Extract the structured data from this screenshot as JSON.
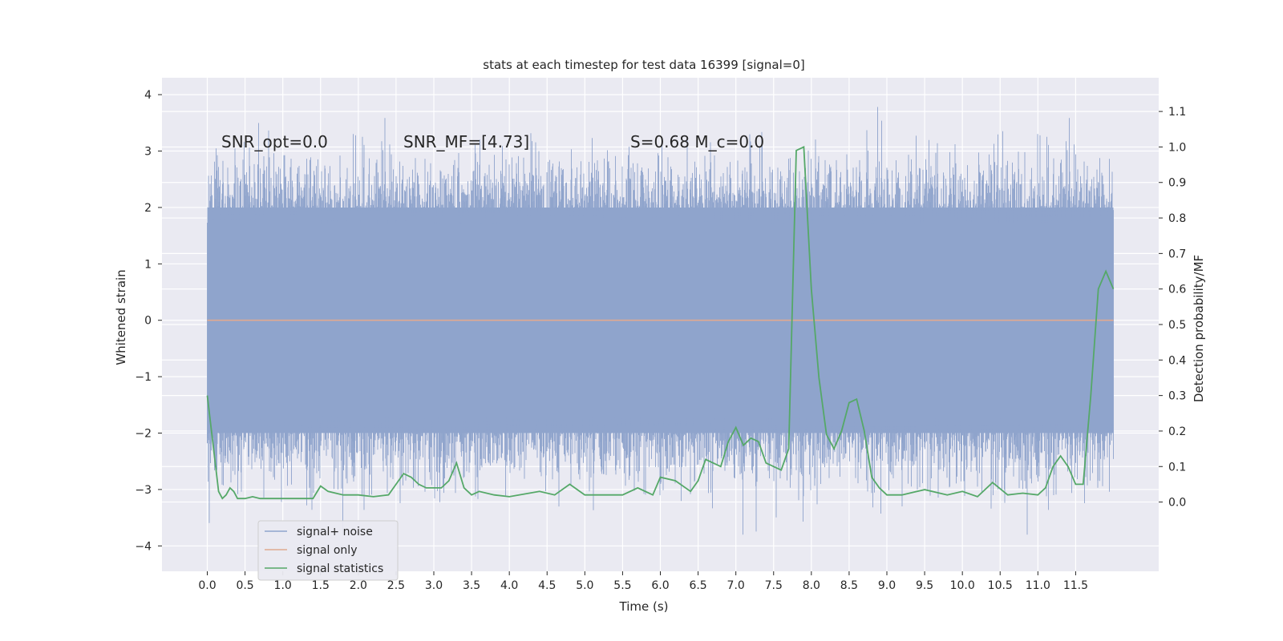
{
  "chart_data": {
    "type": "line",
    "title": "stats at each timestep for test data 16399 [signal=0]",
    "xlabel": "Time (s)",
    "ylabel_left": "Whitened strain",
    "ylabel_right": "Detection probability/MF",
    "xlim": [
      -0.6,
      12.6
    ],
    "ylim_left": [
      -4.45,
      4.3
    ],
    "ylim_right": [
      -0.195,
      1.195
    ],
    "x_ticks": [
      "0.0",
      "0.5",
      "1.0",
      "1.5",
      "2.0",
      "2.5",
      "3.0",
      "3.5",
      "4.0",
      "4.5",
      "5.0",
      "5.5",
      "6.0",
      "6.5",
      "7.0",
      "7.5",
      "8.0",
      "8.5",
      "9.0",
      "9.5",
      "10.0",
      "10.5",
      "11.0",
      "11.5"
    ],
    "y_ticks_left": [
      "4",
      "3",
      "2",
      "1",
      "0",
      "−1",
      "−2",
      "−3",
      "−4"
    ],
    "y_ticks_right": [
      "1.1",
      "1.0",
      "0.9",
      "0.8",
      "0.7",
      "0.6",
      "0.5",
      "0.4",
      "0.3",
      "0.2",
      "0.1",
      "0.0"
    ],
    "grid": true,
    "legend_position": "lower-left",
    "annotations": [
      {
        "text": "SNR_opt=0.0",
        "x": 0.2,
        "y": 3.1
      },
      {
        "text": "SNR_MF=[4.73]",
        "x": 2.6,
        "y": 3.1
      },
      {
        "text": "S=0.68   M_c=0.0",
        "x": 5.6,
        "y": 3.1
      }
    ],
    "series": [
      {
        "name": "signal+ noise",
        "color": "#8fa4cc",
        "axis": "left",
        "x_range": [
          0.0,
          12.0
        ],
        "band_low": -2.0,
        "band_high": 2.0,
        "peak_max": 3.9,
        "peak_min": -3.8
      },
      {
        "name": "signal only",
        "color": "#e0a990",
        "axis": "left",
        "x": [
          0.0,
          12.0
        ],
        "y": [
          0.0,
          0.0
        ]
      },
      {
        "name": "signal statistics",
        "color": "#55a868",
        "axis": "right",
        "x": [
          0.0,
          0.1,
          0.15,
          0.2,
          0.25,
          0.3,
          0.35,
          0.4,
          0.5,
          0.6,
          0.7,
          0.8,
          1.0,
          1.2,
          1.4,
          1.5,
          1.6,
          1.7,
          1.8,
          2.0,
          2.2,
          2.4,
          2.5,
          2.6,
          2.7,
          2.8,
          2.9,
          3.1,
          3.2,
          3.3,
          3.4,
          3.5,
          3.6,
          3.8,
          4.0,
          4.4,
          4.6,
          4.8,
          5.0,
          5.5,
          5.7,
          5.9,
          6.0,
          6.2,
          6.4,
          6.5,
          6.6,
          6.8,
          6.9,
          7.0,
          7.1,
          7.2,
          7.3,
          7.4,
          7.5,
          7.6,
          7.7,
          7.8,
          7.9,
          8.0,
          8.1,
          8.2,
          8.3,
          8.4,
          8.5,
          8.6,
          8.7,
          8.8,
          8.9,
          9.0,
          9.2,
          9.5,
          9.8,
          10.0,
          10.2,
          10.4,
          10.6,
          10.8,
          11.0,
          11.1,
          11.2,
          11.3,
          11.4,
          11.5,
          11.6,
          11.7,
          11.8,
          11.9,
          12.0
        ],
        "y": [
          0.3,
          0.12,
          0.03,
          0.01,
          0.02,
          0.04,
          0.03,
          0.01,
          0.01,
          0.015,
          0.01,
          0.01,
          0.01,
          0.01,
          0.01,
          0.045,
          0.03,
          0.025,
          0.02,
          0.02,
          0.015,
          0.02,
          0.05,
          0.08,
          0.07,
          0.05,
          0.04,
          0.04,
          0.06,
          0.11,
          0.04,
          0.02,
          0.03,
          0.02,
          0.015,
          0.03,
          0.02,
          0.05,
          0.02,
          0.02,
          0.04,
          0.02,
          0.07,
          0.06,
          0.03,
          0.06,
          0.12,
          0.1,
          0.17,
          0.21,
          0.16,
          0.18,
          0.17,
          0.11,
          0.1,
          0.09,
          0.15,
          0.99,
          1.0,
          0.6,
          0.35,
          0.19,
          0.15,
          0.2,
          0.28,
          0.29,
          0.2,
          0.07,
          0.04,
          0.02,
          0.02,
          0.035,
          0.02,
          0.03,
          0.015,
          0.055,
          0.02,
          0.025,
          0.02,
          0.04,
          0.1,
          0.13,
          0.1,
          0.05,
          0.05,
          0.3,
          0.6,
          0.65,
          0.6
        ]
      }
    ]
  }
}
